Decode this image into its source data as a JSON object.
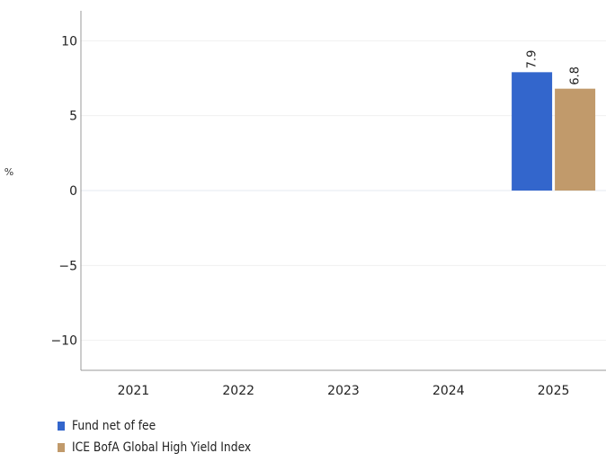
{
  "chart_data": {
    "type": "bar",
    "unit_label": "%",
    "categories": [
      "2021",
      "2022",
      "2023",
      "2024",
      "2025"
    ],
    "series": [
      {
        "name": "Fund net of fee",
        "color": "#3366cc",
        "values": [
          null,
          null,
          null,
          null,
          7.9
        ]
      },
      {
        "name": "ICE BofA Global High Yield Index",
        "color": "#c19a6b",
        "values": [
          null,
          null,
          null,
          null,
          6.8
        ]
      }
    ],
    "data_labels": [
      {
        "series": 0,
        "category": 4,
        "text": "7.9"
      },
      {
        "series": 1,
        "category": 4,
        "text": "6.8"
      }
    ],
    "ylim": [
      -12,
      12
    ],
    "yticks": [
      10,
      5,
      0,
      -5,
      -10
    ],
    "ytick_labels": [
      "10",
      "5",
      "0",
      "−5",
      "−10"
    ],
    "grid": true,
    "legend_position": "bottom-left"
  }
}
